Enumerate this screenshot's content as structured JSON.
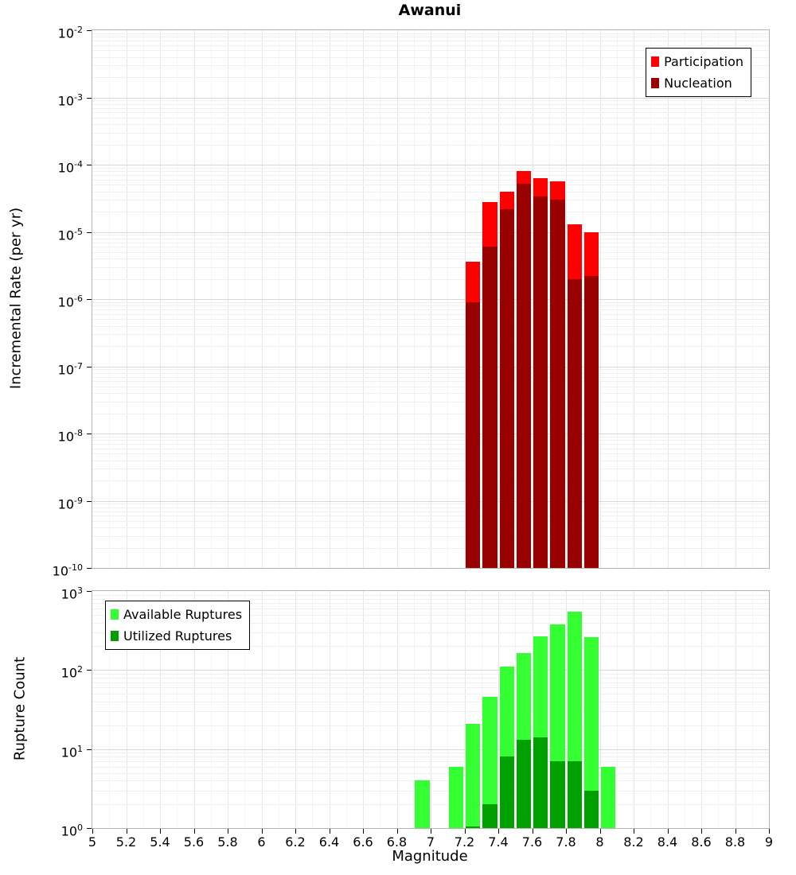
{
  "figure": {
    "background": "#ffffff"
  },
  "chart_data": [
    {
      "type": "bar",
      "title": "Awanui",
      "ylabel": "Incremental Rate (per yr)",
      "yscale": "log",
      "ylim": [
        1e-10,
        0.01
      ],
      "xlim": [
        5,
        9
      ],
      "bin_width": 0.1,
      "grid": true,
      "show_xaxis_labels": false,
      "xticks": [
        5,
        5.2,
        5.4,
        5.6,
        5.8,
        6,
        6.2,
        6.4,
        6.6,
        6.8,
        7,
        7.2,
        7.4,
        7.6,
        7.8,
        8,
        8.2,
        8.4,
        8.6,
        8.8,
        9
      ],
      "ytick_exponents": [
        -2,
        -3,
        -4,
        -5,
        -6,
        -7,
        -8,
        -9,
        -10
      ],
      "categories": [
        7.25,
        7.35,
        7.45,
        7.55,
        7.65,
        7.75,
        7.85,
        7.95
      ],
      "series": [
        {
          "name": "Participation",
          "color": "#ff0000",
          "values": [
            3.6e-06,
            2.8e-05,
            4e-05,
            8e-05,
            6.3e-05,
            5.6e-05,
            1.3e-05,
            1e-05
          ]
        },
        {
          "name": "Nucleation",
          "color": "#990000",
          "values": [
            9e-07,
            6e-06,
            2.2e-05,
            5.2e-05,
            3.4e-05,
            3e-05,
            2e-06,
            2.2e-06
          ]
        }
      ],
      "legend": {
        "position": "top-right",
        "entries": [
          "Participation",
          "Nucleation"
        ]
      }
    },
    {
      "type": "bar",
      "xlabel": "Magnitude",
      "ylabel": "Rupture Count",
      "yscale": "log",
      "ylim": [
        1,
        1000
      ],
      "xlim": [
        5,
        9
      ],
      "bin_width": 0.1,
      "grid": true,
      "show_xaxis_labels": true,
      "xticks": [
        5,
        5.2,
        5.4,
        5.6,
        5.8,
        6,
        6.2,
        6.4,
        6.6,
        6.8,
        7,
        7.2,
        7.4,
        7.6,
        7.8,
        8,
        8.2,
        8.4,
        8.6,
        8.8,
        9
      ],
      "ytick_exponents": [
        3,
        2,
        1,
        0
      ],
      "categories": [
        6.95,
        7.15,
        7.25,
        7.35,
        7.45,
        7.55,
        7.65,
        7.75,
        7.85,
        7.95,
        8.05
      ],
      "series": [
        {
          "name": "Available Ruptures",
          "color": "#33ff33",
          "values": [
            4,
            6,
            21,
            46,
            110,
            165,
            270,
            380,
            550,
            260,
            6
          ]
        },
        {
          "name": "Utilized Ruptures",
          "color": "#00a000",
          "values": [
            0,
            0,
            1,
            2,
            8,
            13,
            14,
            7,
            7,
            3,
            0
          ]
        }
      ],
      "legend": {
        "position": "top-left",
        "entries": [
          "Available Ruptures",
          "Utilized Ruptures"
        ]
      }
    }
  ]
}
